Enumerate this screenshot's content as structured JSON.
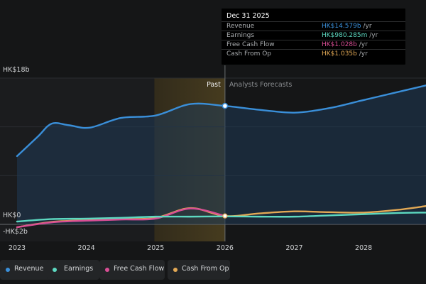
{
  "chart_data": {
    "type": "area",
    "x_ticks": [
      "2023",
      "2024",
      "2025",
      "2026",
      "2027",
      "2028"
    ],
    "y_ticks": [
      "HK$18b",
      "HK$0",
      "-HK$2b"
    ],
    "y_values": [
      18,
      0,
      -2
    ],
    "ylim": [
      -2,
      18
    ],
    "xlim": [
      2023.0,
      2028.9
    ],
    "region_labels": {
      "past": "Past",
      "forecast": "Analysts Forecasts"
    },
    "highlight_band": [
      2025.0,
      2026.0
    ],
    "past_shade_start": 2025.0,
    "divider_at": 2026.0,
    "series": [
      {
        "name": "Revenue",
        "color": "#3a8fd9",
        "points": [
          [
            2023.0,
            8.4
          ],
          [
            2023.3,
            10.8
          ],
          [
            2023.5,
            12.4
          ],
          [
            2023.75,
            12.2
          ],
          [
            2024.05,
            11.9
          ],
          [
            2024.5,
            13.1
          ],
          [
            2025.0,
            13.4
          ],
          [
            2025.5,
            14.8
          ],
          [
            2026.0,
            14.58
          ],
          [
            2026.5,
            14.1
          ],
          [
            2027.0,
            13.75
          ],
          [
            2027.5,
            14.3
          ],
          [
            2028.0,
            15.3
          ],
          [
            2028.5,
            16.3
          ],
          [
            2028.9,
            17.1
          ]
        ]
      },
      {
        "name": "Earnings",
        "color": "#5dd9c1",
        "points": [
          [
            2023.0,
            0.35
          ],
          [
            2023.5,
            0.65
          ],
          [
            2024.0,
            0.7
          ],
          [
            2024.5,
            0.8
          ],
          [
            2025.0,
            0.95
          ],
          [
            2025.5,
            0.95
          ],
          [
            2026.0,
            0.98
          ],
          [
            2026.5,
            0.95
          ],
          [
            2027.0,
            0.95
          ],
          [
            2027.5,
            1.1
          ],
          [
            2028.0,
            1.25
          ],
          [
            2028.5,
            1.4
          ],
          [
            2028.9,
            1.45
          ]
        ]
      },
      {
        "name": "Free Cash Flow",
        "color": "#d94e95",
        "points": [
          [
            2023.0,
            -0.35
          ],
          [
            2023.5,
            0.25
          ],
          [
            2024.0,
            0.45
          ],
          [
            2024.5,
            0.6
          ],
          [
            2025.0,
            0.72
          ],
          [
            2025.5,
            1.95
          ],
          [
            2026.0,
            1.03
          ]
        ]
      },
      {
        "name": "Cash From Op",
        "color": "#e3a955",
        "points": [
          [
            2023.0,
            -0.35
          ],
          [
            2023.5,
            0.3
          ],
          [
            2024.0,
            0.5
          ],
          [
            2024.5,
            0.65
          ],
          [
            2025.0,
            0.8
          ],
          [
            2025.5,
            2.0
          ],
          [
            2026.0,
            1.035
          ],
          [
            2026.5,
            1.35
          ],
          [
            2027.0,
            1.6
          ],
          [
            2027.5,
            1.5
          ],
          [
            2028.0,
            1.45
          ],
          [
            2028.5,
            1.8
          ],
          [
            2028.9,
            2.25
          ]
        ]
      }
    ],
    "marker_x": 2026.0
  },
  "tooltip": {
    "date": "Dec 31 2025",
    "rows": [
      {
        "name": "Revenue",
        "value": "HK$14.579b",
        "unit": " /yr",
        "color": "#3a8fd9"
      },
      {
        "name": "Earnings",
        "value": "HK$980.285m",
        "unit": " /yr",
        "color": "#5dd9c1"
      },
      {
        "name": "Free Cash Flow",
        "value": "HK$1.028b",
        "unit": " /yr",
        "color": "#d94e95"
      },
      {
        "name": "Cash From Op",
        "value": "HK$1.035b",
        "unit": " /yr",
        "color": "#e3a955"
      }
    ]
  },
  "legend": [
    {
      "label": "Revenue",
      "color": "#3a8fd9"
    },
    {
      "label": "Earnings",
      "color": "#5dd9c1"
    },
    {
      "label": "Free Cash Flow",
      "color": "#d94e95"
    },
    {
      "label": "Cash From Op",
      "color": "#e3a955"
    }
  ]
}
